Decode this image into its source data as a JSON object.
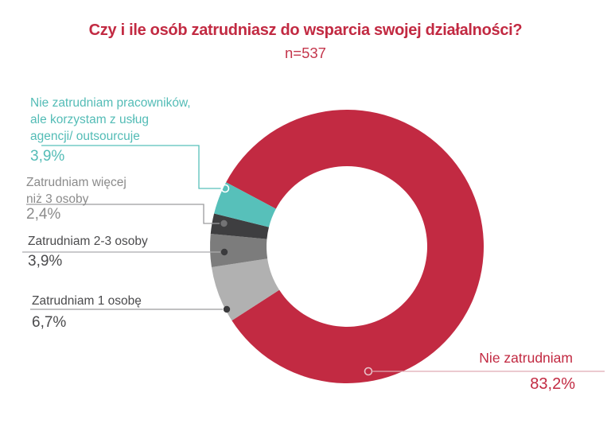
{
  "chart_data": {
    "type": "pie",
    "variant": "donut",
    "title": "Czy i ile osób zatrudniasz do wsparcia swojej działalności?",
    "sample_label": "n=537",
    "start_angle_deg_cw_from_top": -62,
    "direction": "clockwise",
    "legend_position": "callout-labels",
    "segments": [
      {
        "id": "nie-zatrudniam",
        "label": "Nie zatrudniam",
        "value_pct": 83.2,
        "display_value": "83,2%",
        "color": "#c22a42"
      },
      {
        "id": "zatrudniam-1-osobe",
        "label": "Zatrudniam 1 osobę",
        "value_pct": 6.7,
        "display_value": "6,7%",
        "color": "#b1b1b1"
      },
      {
        "id": "zatrudniam-2-3-osoby",
        "label": "Zatrudniam 2-3 osoby",
        "value_pct": 3.9,
        "display_value": "3,9%",
        "color": "#7c7c7c"
      },
      {
        "id": "zatrudniam-wiecej-niz-3",
        "label": "Zatrudniam więcej niż 3 osoby",
        "value_pct": 2.4,
        "display_value": "2,4%",
        "color": "#3e3e40"
      },
      {
        "id": "agencja-outsourcing",
        "label": "Nie zatrudniam pracowników, ale korzystam z usług agencji/ outsourcuje",
        "value_pct": 3.9,
        "display_value": "3,9%",
        "color": "#57c0ba"
      }
    ]
  },
  "callouts": {
    "agencja": {
      "label": "Nie zatrudniam pracowników,\nale korzystam z usług\nagencji/ outsourcuje",
      "value": "3,9%"
    },
    "wiecej": {
      "label": "Zatrudniam więcej\nniż 3 osoby",
      "value": "2,4%"
    },
    "osoby23": {
      "label": "Zatrudniam 2-3 osoby",
      "value": "3,9%"
    },
    "osoba1": {
      "label": "Zatrudniam 1 osobę",
      "value": "6,7%"
    },
    "nie_zatrudniam": {
      "label": "Nie zatrudniam",
      "value": "83,2%"
    }
  },
  "colors": {
    "accent_red": "#c22a42",
    "teal": "#57c0ba",
    "dark_gray": "#3e3e40",
    "medium_gray": "#7c7c7c",
    "light_gray": "#b1b1b1",
    "label_dark": "#4b4b4d",
    "label_muted": "#8b8b8b",
    "connector_gray": "#9c9c9e",
    "connector_pink": "#e0aab3"
  }
}
